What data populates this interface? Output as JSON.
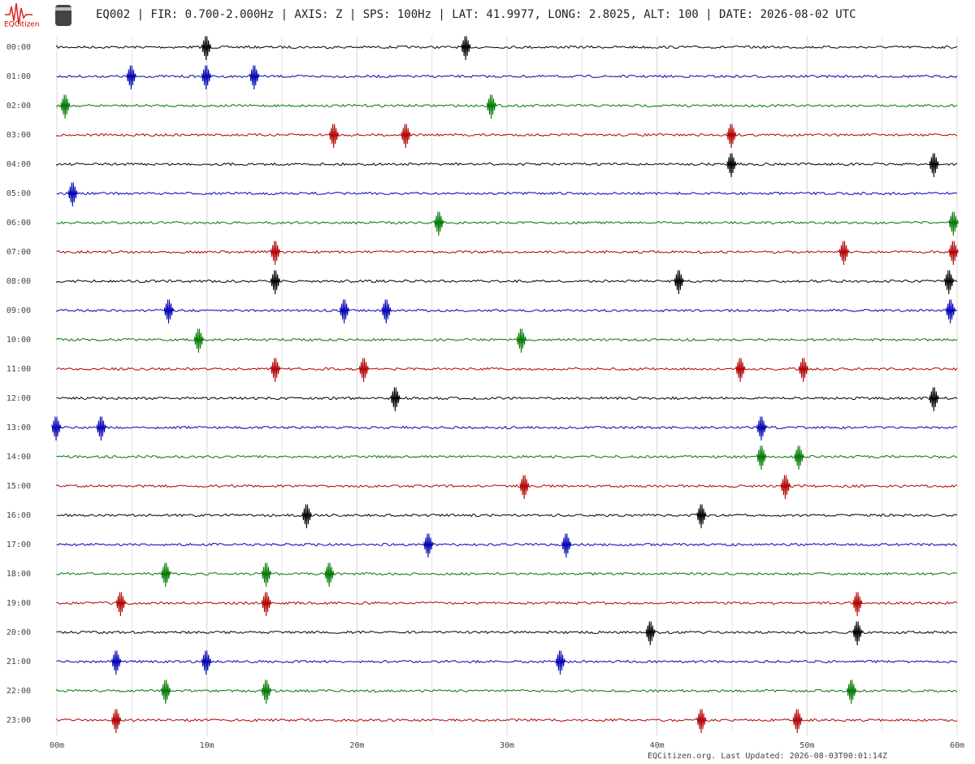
{
  "logo_text": "EQCitizen",
  "chart_data": {
    "type": "helicorder",
    "title": "EQ002 | FIR: 0.700-2.000Hz | AXIS: Z | SPS: 100Hz | LAT: 41.9977, LONG: 2.8025, ALT: 100 | DATE: 2026-08-02 UTC",
    "footer": "EQCitizen.org. Last Updated: 2026-08-03T00:01:14Z",
    "categories": [
      "00:00",
      "01:00",
      "02:00",
      "03:00",
      "04:00",
      "05:00",
      "06:00",
      "07:00",
      "08:00",
      "09:00",
      "10:00",
      "11:00",
      "12:00",
      "13:00",
      "14:00",
      "15:00",
      "16:00",
      "17:00",
      "18:00",
      "19:00",
      "20:00",
      "21:00",
      "22:00",
      "23:00"
    ],
    "row_colors": [
      "#000000",
      "#0000b4",
      "#007800",
      "#b40000"
    ],
    "events": [
      [
        10,
        27.3
      ],
      [
        5,
        10,
        13.2
      ],
      [
        0.6,
        29
      ],
      [
        18.5,
        23.3,
        45
      ],
      [
        45,
        58.5
      ],
      [
        1.1
      ],
      [
        25.5,
        59.8
      ],
      [
        14.6,
        52.5,
        59.8
      ],
      [
        14.6,
        41.5,
        59.5
      ],
      [
        7.5,
        19.2,
        22,
        59.6
      ],
      [
        9.5,
        31
      ],
      [
        14.6,
        20.5,
        45.6,
        49.8
      ],
      [
        22.6,
        58.5
      ],
      [
        0,
        3,
        47
      ],
      [
        47,
        49.5
      ],
      [
        31.2,
        48.6
      ],
      [
        16.7,
        43
      ],
      [
        24.8,
        34
      ],
      [
        7.3,
        14,
        18.2
      ],
      [
        4.3,
        14,
        53.4
      ],
      [
        39.6,
        53.4
      ],
      [
        4,
        10,
        33.6
      ],
      [
        7.3,
        14,
        53
      ],
      [
        4,
        43,
        49.4
      ]
    ],
    "xlim": [
      0,
      60
    ],
    "xticks": [
      {
        "value": 0,
        "label": "00m"
      },
      {
        "value": 10,
        "label": "10m"
      },
      {
        "value": 20,
        "label": "20m"
      },
      {
        "value": 30,
        "label": "30m"
      },
      {
        "value": 40,
        "label": "40m"
      },
      {
        "value": 50,
        "label": "50m"
      },
      {
        "value": 60,
        "label": "60m"
      }
    ],
    "grid_step": 5
  }
}
